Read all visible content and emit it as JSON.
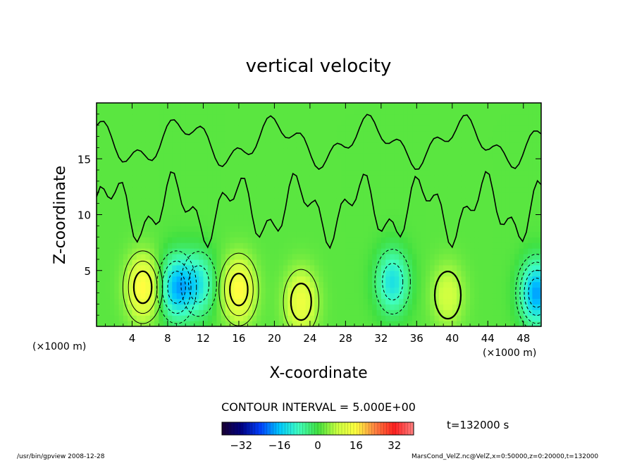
{
  "chart_data": {
    "type": "heatmap",
    "title": "vertical velocity",
    "xlabel": "X-coordinate",
    "ylabel": "Z-coordinate",
    "x_unit_left": "(×1000 m)",
    "x_unit_right": "(×1000 m)",
    "xlim": [
      0,
      50
    ],
    "ylim": [
      0,
      20
    ],
    "x_ticks": [
      "4",
      "8",
      "12",
      "16",
      "20",
      "24",
      "28",
      "32",
      "36",
      "40",
      "44",
      "48"
    ],
    "y_ticks": [
      "5",
      "10",
      "15"
    ],
    "contour_interval_label": "CONTOUR INTERVAL = 5.000E+00",
    "time_label": "t=132000 s",
    "colorbar": {
      "range": [
        -40,
        40
      ],
      "ticks": [
        "−32",
        "−16",
        "0",
        "16",
        "32"
      ],
      "colors": [
        "#1a0033",
        "#000080",
        "#0040ff",
        "#00c8ff",
        "#40ffc0",
        "#40e040",
        "#c8ff40",
        "#ffff40",
        "#ff8040",
        "#ff2020",
        "#ff8080"
      ]
    },
    "features": [
      {
        "kind": "updraft",
        "x": 5.2,
        "z": 3.5,
        "peak": 15
      },
      {
        "kind": "updraft",
        "x": 16.0,
        "z": 3.3,
        "peak": 15
      },
      {
        "kind": "updraft",
        "x": 23.0,
        "z": 2.2,
        "peak": 12
      },
      {
        "kind": "updraft",
        "x": 39.5,
        "z": 2.8,
        "peak": 8
      },
      {
        "kind": "downdraft",
        "x": 9.0,
        "z": 3.5,
        "peak": -18
      },
      {
        "kind": "downdraft",
        "x": 11.5,
        "z": 3.8,
        "peak": -12
      },
      {
        "kind": "downdraft",
        "x": 33.3,
        "z": 4.0,
        "peak": -14
      },
      {
        "kind": "downdraft",
        "x": 49.5,
        "z": 3.0,
        "peak": -20
      }
    ]
  },
  "footer": {
    "left": "/usr/bin/gpview   2008-12-28",
    "right": "MarsCond_VelZ.nc@VelZ,x=0:50000,z=0:20000,t=132000"
  }
}
